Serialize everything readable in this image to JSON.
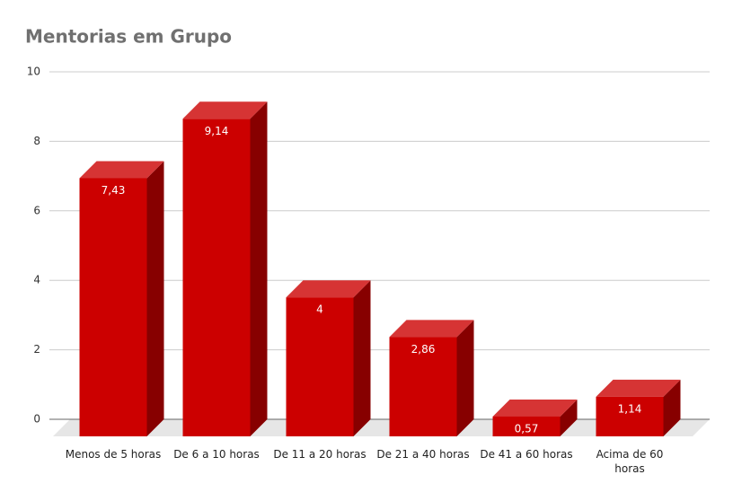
{
  "chart_data": {
    "type": "bar3d",
    "title": "Mentorias em Grupo",
    "categories": [
      "Menos de 5 horas",
      "De 6 a 10 horas",
      "De 11 a 20 horas",
      "De 21 a 40 horas",
      "De 41 a 60 horas",
      "Acima de 60 horas"
    ],
    "values": [
      7.43,
      9.14,
      4,
      2.86,
      0.57,
      1.14
    ],
    "value_labels": [
      "7,43",
      "9,14",
      "4",
      "2,86",
      "0,57",
      "1,14"
    ],
    "color": "#cc0000",
    "ylim": [
      0,
      10
    ],
    "yticks": [
      0,
      2,
      4,
      6,
      8,
      10
    ],
    "grid": true
  }
}
